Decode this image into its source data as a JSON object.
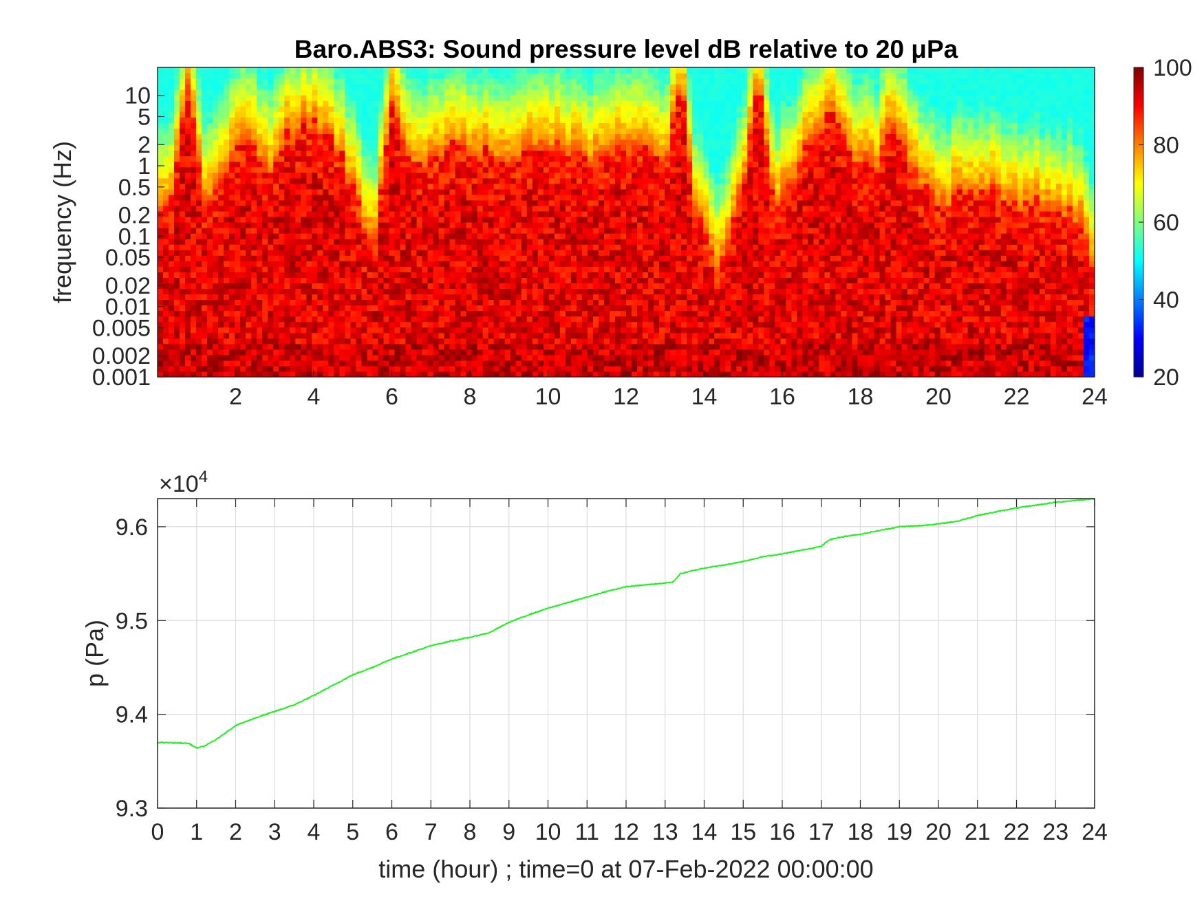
{
  "chart_data": [
    {
      "type": "heatmap",
      "title": "Baro.ABS3: Sound pressure level dB relative to 20 μPa",
      "ylabel": "frequency (Hz)",
      "xlabel": "",
      "yscale": "log",
      "ylim": [
        0.001,
        25
      ],
      "xlim": [
        0,
        24
      ],
      "x_ticks": [
        2,
        4,
        6,
        8,
        10,
        12,
        14,
        16,
        18,
        20,
        22,
        24
      ],
      "y_ticks": [
        0.001,
        0.002,
        0.005,
        0.01,
        0.02,
        0.05,
        0.1,
        0.2,
        0.5,
        1,
        2,
        5,
        10
      ],
      "y_tick_labels": [
        "0.001",
        "0.002",
        "0.005",
        "0.01",
        "0.02",
        "0.05",
        "0.1",
        "0.2",
        "0.5",
        "1",
        "2",
        "5",
        "10"
      ],
      "colorbar": {
        "min": 20,
        "max": 100,
        "ticks": [
          20,
          40,
          60,
          80,
          100
        ],
        "colormap": "jet"
      },
      "edge_frequency_hz": [
        [
          0.0,
          0.2
        ],
        [
          0.4,
          0.5
        ],
        [
          0.8,
          18
        ],
        [
          1.2,
          0.3
        ],
        [
          1.7,
          0.8
        ],
        [
          2.2,
          3
        ],
        [
          2.8,
          0.9
        ],
        [
          3.3,
          3
        ],
        [
          3.8,
          4
        ],
        [
          4.3,
          3
        ],
        [
          4.8,
          1
        ],
        [
          5.5,
          0.06
        ],
        [
          6.0,
          8
        ],
        [
          6.5,
          0.8
        ],
        [
          7.0,
          1.5
        ],
        [
          7.6,
          2
        ],
        [
          8.2,
          1.8
        ],
        [
          8.8,
          1.2
        ],
        [
          9.4,
          1.5
        ],
        [
          10.0,
          2
        ],
        [
          10.6,
          1.5
        ],
        [
          11.2,
          1.2
        ],
        [
          11.8,
          1.8
        ],
        [
          12.4,
          2
        ],
        [
          13.0,
          1
        ],
        [
          13.4,
          18
        ],
        [
          13.8,
          0.2
        ],
        [
          14.4,
          0.04
        ],
        [
          15.0,
          0.5
        ],
        [
          15.4,
          18
        ],
        [
          15.8,
          0.3
        ],
        [
          16.4,
          1
        ],
        [
          17.2,
          8
        ],
        [
          17.8,
          1.5
        ],
        [
          18.4,
          1
        ],
        [
          18.8,
          5
        ],
        [
          19.4,
          0.8
        ],
        [
          20.0,
          0.3
        ],
        [
          20.6,
          0.4
        ],
        [
          21.2,
          0.5
        ],
        [
          21.8,
          0.3
        ],
        [
          22.4,
          0.3
        ],
        [
          23.0,
          0.25
        ],
        [
          23.6,
          0.2
        ],
        [
          24.0,
          0.02
        ]
      ]
    },
    {
      "type": "line",
      "xlabel": "time (hour) ; time=0 at 07-Feb-2022 00:00:00",
      "ylabel": "p (Pa)",
      "y_exponent_label": "×10",
      "y_exponent": "4",
      "xlim": [
        0,
        24
      ],
      "ylim": [
        93000,
        96300
      ],
      "x_ticks": [
        0,
        1,
        2,
        3,
        4,
        5,
        6,
        7,
        8,
        9,
        10,
        11,
        12,
        13,
        14,
        15,
        16,
        17,
        18,
        19,
        20,
        21,
        22,
        23,
        24
      ],
      "y_ticks": [
        93000,
        94000,
        95000,
        96000
      ],
      "y_tick_labels": [
        "9.3",
        "9.4",
        "9.5",
        "9.6"
      ],
      "grid": true,
      "line_color": "#22ee22",
      "series": [
        {
          "x": [
            0,
            0.5,
            0.8,
            1.0,
            1.2,
            1.5,
            2.0,
            2.5,
            3.0,
            3.5,
            4.0,
            4.5,
            5.0,
            5.5,
            6.0,
            6.5,
            7.0,
            7.5,
            8.0,
            8.5,
            9.0,
            9.5,
            10.0,
            10.5,
            11.0,
            11.5,
            12.0,
            12.5,
            13.0,
            13.2,
            13.4,
            13.6,
            14.0,
            14.5,
            15.0,
            15.5,
            16.0,
            16.5,
            17.0,
            17.2,
            17.5,
            18.0,
            18.5,
            19.0,
            19.5,
            20.0,
            20.5,
            21.0,
            21.5,
            22.0,
            22.5,
            23.0,
            23.5,
            24.0
          ],
          "y": [
            93700,
            93695,
            93690,
            93640,
            93660,
            93730,
            93880,
            93960,
            94030,
            94100,
            94200,
            94310,
            94420,
            94500,
            94590,
            94660,
            94730,
            94780,
            94820,
            94870,
            94980,
            95060,
            95130,
            95190,
            95250,
            95310,
            95360,
            95380,
            95400,
            95410,
            95500,
            95520,
            95560,
            95590,
            95630,
            95680,
            95710,
            95750,
            95790,
            95860,
            95890,
            95920,
            95960,
            96000,
            96010,
            96030,
            96060,
            96120,
            96160,
            96200,
            96230,
            96260,
            96280,
            96300
          ]
        }
      ]
    }
  ]
}
